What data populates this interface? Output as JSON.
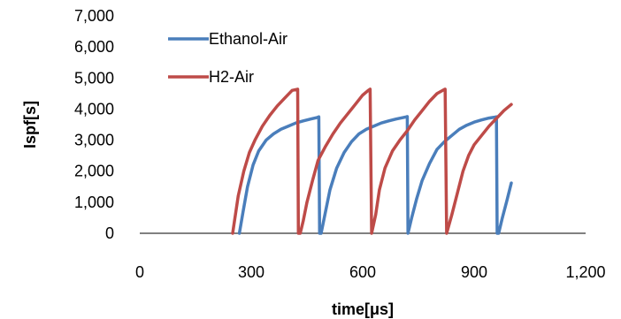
{
  "chart_data": {
    "type": "line",
    "title": "",
    "xlabel": "time[μs]",
    "ylabel": "Ispf[s]",
    "xlim": [
      0,
      1200
    ],
    "ylim": [
      0,
      7000
    ],
    "x_ticks": [
      "0",
      "300",
      "600",
      "900",
      "1,200"
    ],
    "x_tick_values": [
      0,
      300,
      600,
      900,
      1200
    ],
    "y_ticks": [
      "0",
      "1,000",
      "2,000",
      "3,000",
      "4,000",
      "5,000",
      "6,000",
      "7,000"
    ],
    "y_tick_values": [
      0,
      1000,
      2000,
      3000,
      4000,
      5000,
      6000,
      7000
    ],
    "grid": false,
    "legend_position": "top-left",
    "series": [
      {
        "name": "Ethanol-Air",
        "color": "#4a7ebb",
        "x": [
          268,
          278,
          290,
          305,
          320,
          340,
          360,
          380,
          400,
          420,
          440,
          460,
          478,
          482,
          484,
          488,
          500,
          512,
          530,
          550,
          570,
          590,
          610,
          630,
          650,
          670,
          690,
          710,
          718,
          720,
          722,
          732,
          745,
          760,
          780,
          800,
          820,
          840,
          860,
          880,
          900,
          920,
          940,
          955,
          960,
          962,
          966,
          976,
          988,
          1000
        ],
        "y": [
          0,
          700,
          1500,
          2200,
          2650,
          3000,
          3200,
          3350,
          3450,
          3550,
          3620,
          3680,
          3730,
          3750,
          0,
          0,
          700,
          1400,
          2100,
          2600,
          2950,
          3200,
          3350,
          3450,
          3550,
          3620,
          3680,
          3730,
          3750,
          3760,
          0,
          500,
          1100,
          1700,
          2250,
          2700,
          2950,
          3150,
          3350,
          3480,
          3580,
          3650,
          3710,
          3740,
          3750,
          0,
          0,
          500,
          1050,
          1620
        ]
      },
      {
        "name": "H2-Air",
        "color": "#be4b48",
        "x": [
          250,
          255,
          265,
          280,
          295,
          310,
          330,
          350,
          370,
          390,
          410,
          425,
          427,
          432,
          440,
          450,
          465,
          480,
          500,
          520,
          540,
          560,
          580,
          600,
          615,
          620,
          624,
          635,
          645,
          660,
          680,
          700,
          720,
          740,
          760,
          780,
          800,
          818,
          822,
          826,
          840,
          855,
          870,
          885,
          900,
          920,
          940,
          960,
          980,
          1000
        ],
        "y": [
          0,
          400,
          1200,
          2000,
          2600,
          3000,
          3450,
          3800,
          4100,
          4350,
          4600,
          4640,
          0,
          0,
          400,
          1000,
          1700,
          2350,
          2800,
          3200,
          3550,
          3850,
          4150,
          4450,
          4600,
          4640,
          0,
          600,
          1400,
          2100,
          2650,
          3000,
          3300,
          3650,
          3950,
          4250,
          4500,
          4620,
          4640,
          0,
          600,
          1300,
          2000,
          2500,
          2850,
          3150,
          3450,
          3700,
          3950,
          4150
        ]
      }
    ]
  }
}
